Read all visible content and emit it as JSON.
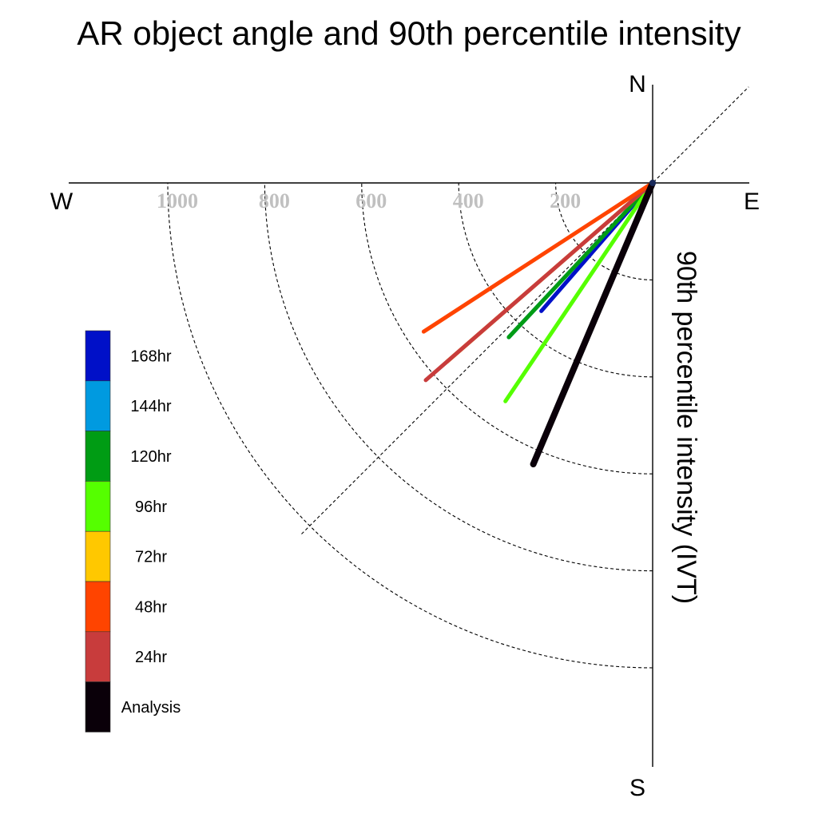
{
  "chart_data": {
    "type": "polar-vector",
    "title": "AR object angle and 90th percentile intensity",
    "radial_label": "90th percentile intensity (IVT)",
    "compass": {
      "north": "N",
      "east": "E",
      "south": "S",
      "west": "W"
    },
    "radial_ticks": [
      200,
      400,
      600,
      800,
      1000
    ],
    "radial_range": [
      0,
      1200
    ],
    "grid": true,
    "diagonal_reference_deg": 225,
    "angle_convention": "degrees clockwise from north",
    "series": [
      {
        "name": "Analysis",
        "color": "#0a0009",
        "angle_deg": 203,
        "intensity": 630
      },
      {
        "name": "24hr",
        "color": "#c83c3c",
        "angle_deg": 229,
        "intensity": 620
      },
      {
        "name": "48hr",
        "color": "#ff4400",
        "angle_deg": 237,
        "intensity": 563
      },
      {
        "name": "72hr",
        "color": "#ffc800",
        "angle_deg": 229,
        "intensity": 562
      },
      {
        "name": "96hr",
        "color": "#55ff00",
        "angle_deg": 214,
        "intensity": 543
      },
      {
        "name": "120hr",
        "color": "#009c14",
        "angle_deg": 223,
        "intensity": 435
      },
      {
        "name": "144hr",
        "color": "#009ae0",
        "angle_deg": 223,
        "intensity": 435
      },
      {
        "name": "168hr",
        "color": "#0010c8",
        "angle_deg": 221,
        "intensity": 350
      }
    ],
    "legend": {
      "placement": "left",
      "entries": [
        "168hr",
        "144hr",
        "120hr",
        "96hr",
        "72hr",
        "48hr",
        "24hr",
        "Analysis"
      ]
    }
  }
}
